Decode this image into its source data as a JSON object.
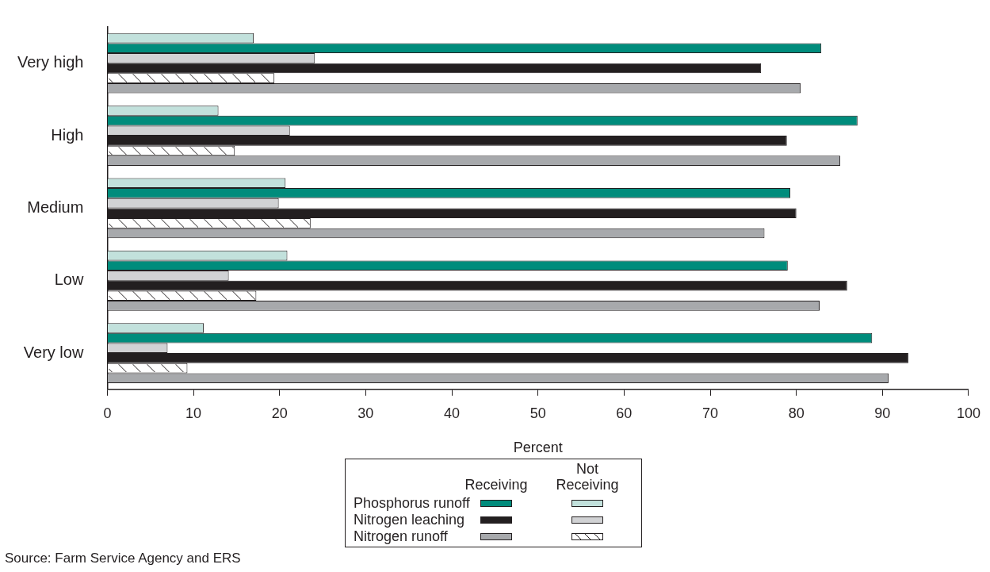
{
  "chart_data": {
    "type": "bar",
    "orientation": "horizontal",
    "xlabel": "Percent",
    "categories": [
      "Very high",
      "High",
      "Medium",
      "Low",
      "Very low"
    ],
    "series": [
      {
        "color": "#c2e1dc",
        "values": [
          17.0,
          12.9,
          20.7,
          20.9,
          11.2
        ]
      },
      {
        "name": "Phosphorus runoff",
        "color": "#008c7c",
        "values": [
          82.9,
          87.1,
          79.3,
          79.0,
          88.8
        ]
      },
      {
        "color": "#d1d2d4",
        "values": [
          24.1,
          21.2,
          19.9,
          14.1,
          7.0
        ]
      },
      {
        "name": "Nitrogen leaching",
        "color": "#231f20",
        "values": [
          75.9,
          78.9,
          80.0,
          85.9,
          93.0
        ]
      },
      {
        "color": "#ffffff",
        "values": [
          19.4,
          14.8,
          23.6,
          17.3,
          9.3
        ]
      },
      {
        "name": "Nitrogen runoff",
        "color": "#a7a9ac",
        "values": [
          80.5,
          85.1,
          76.3,
          82.7,
          90.7
        ]
      }
    ],
    "xlim": [
      0,
      100
    ],
    "xticks": [
      0,
      10,
      20,
      30,
      40,
      50,
      60,
      70,
      80,
      90,
      100
    ],
    "grid": false,
    "legend": "bottom",
    "annotations": [
      "Receiving",
      "Not Receiving",
      "Source: Farm Service Agency and ERS"
    ]
  }
}
